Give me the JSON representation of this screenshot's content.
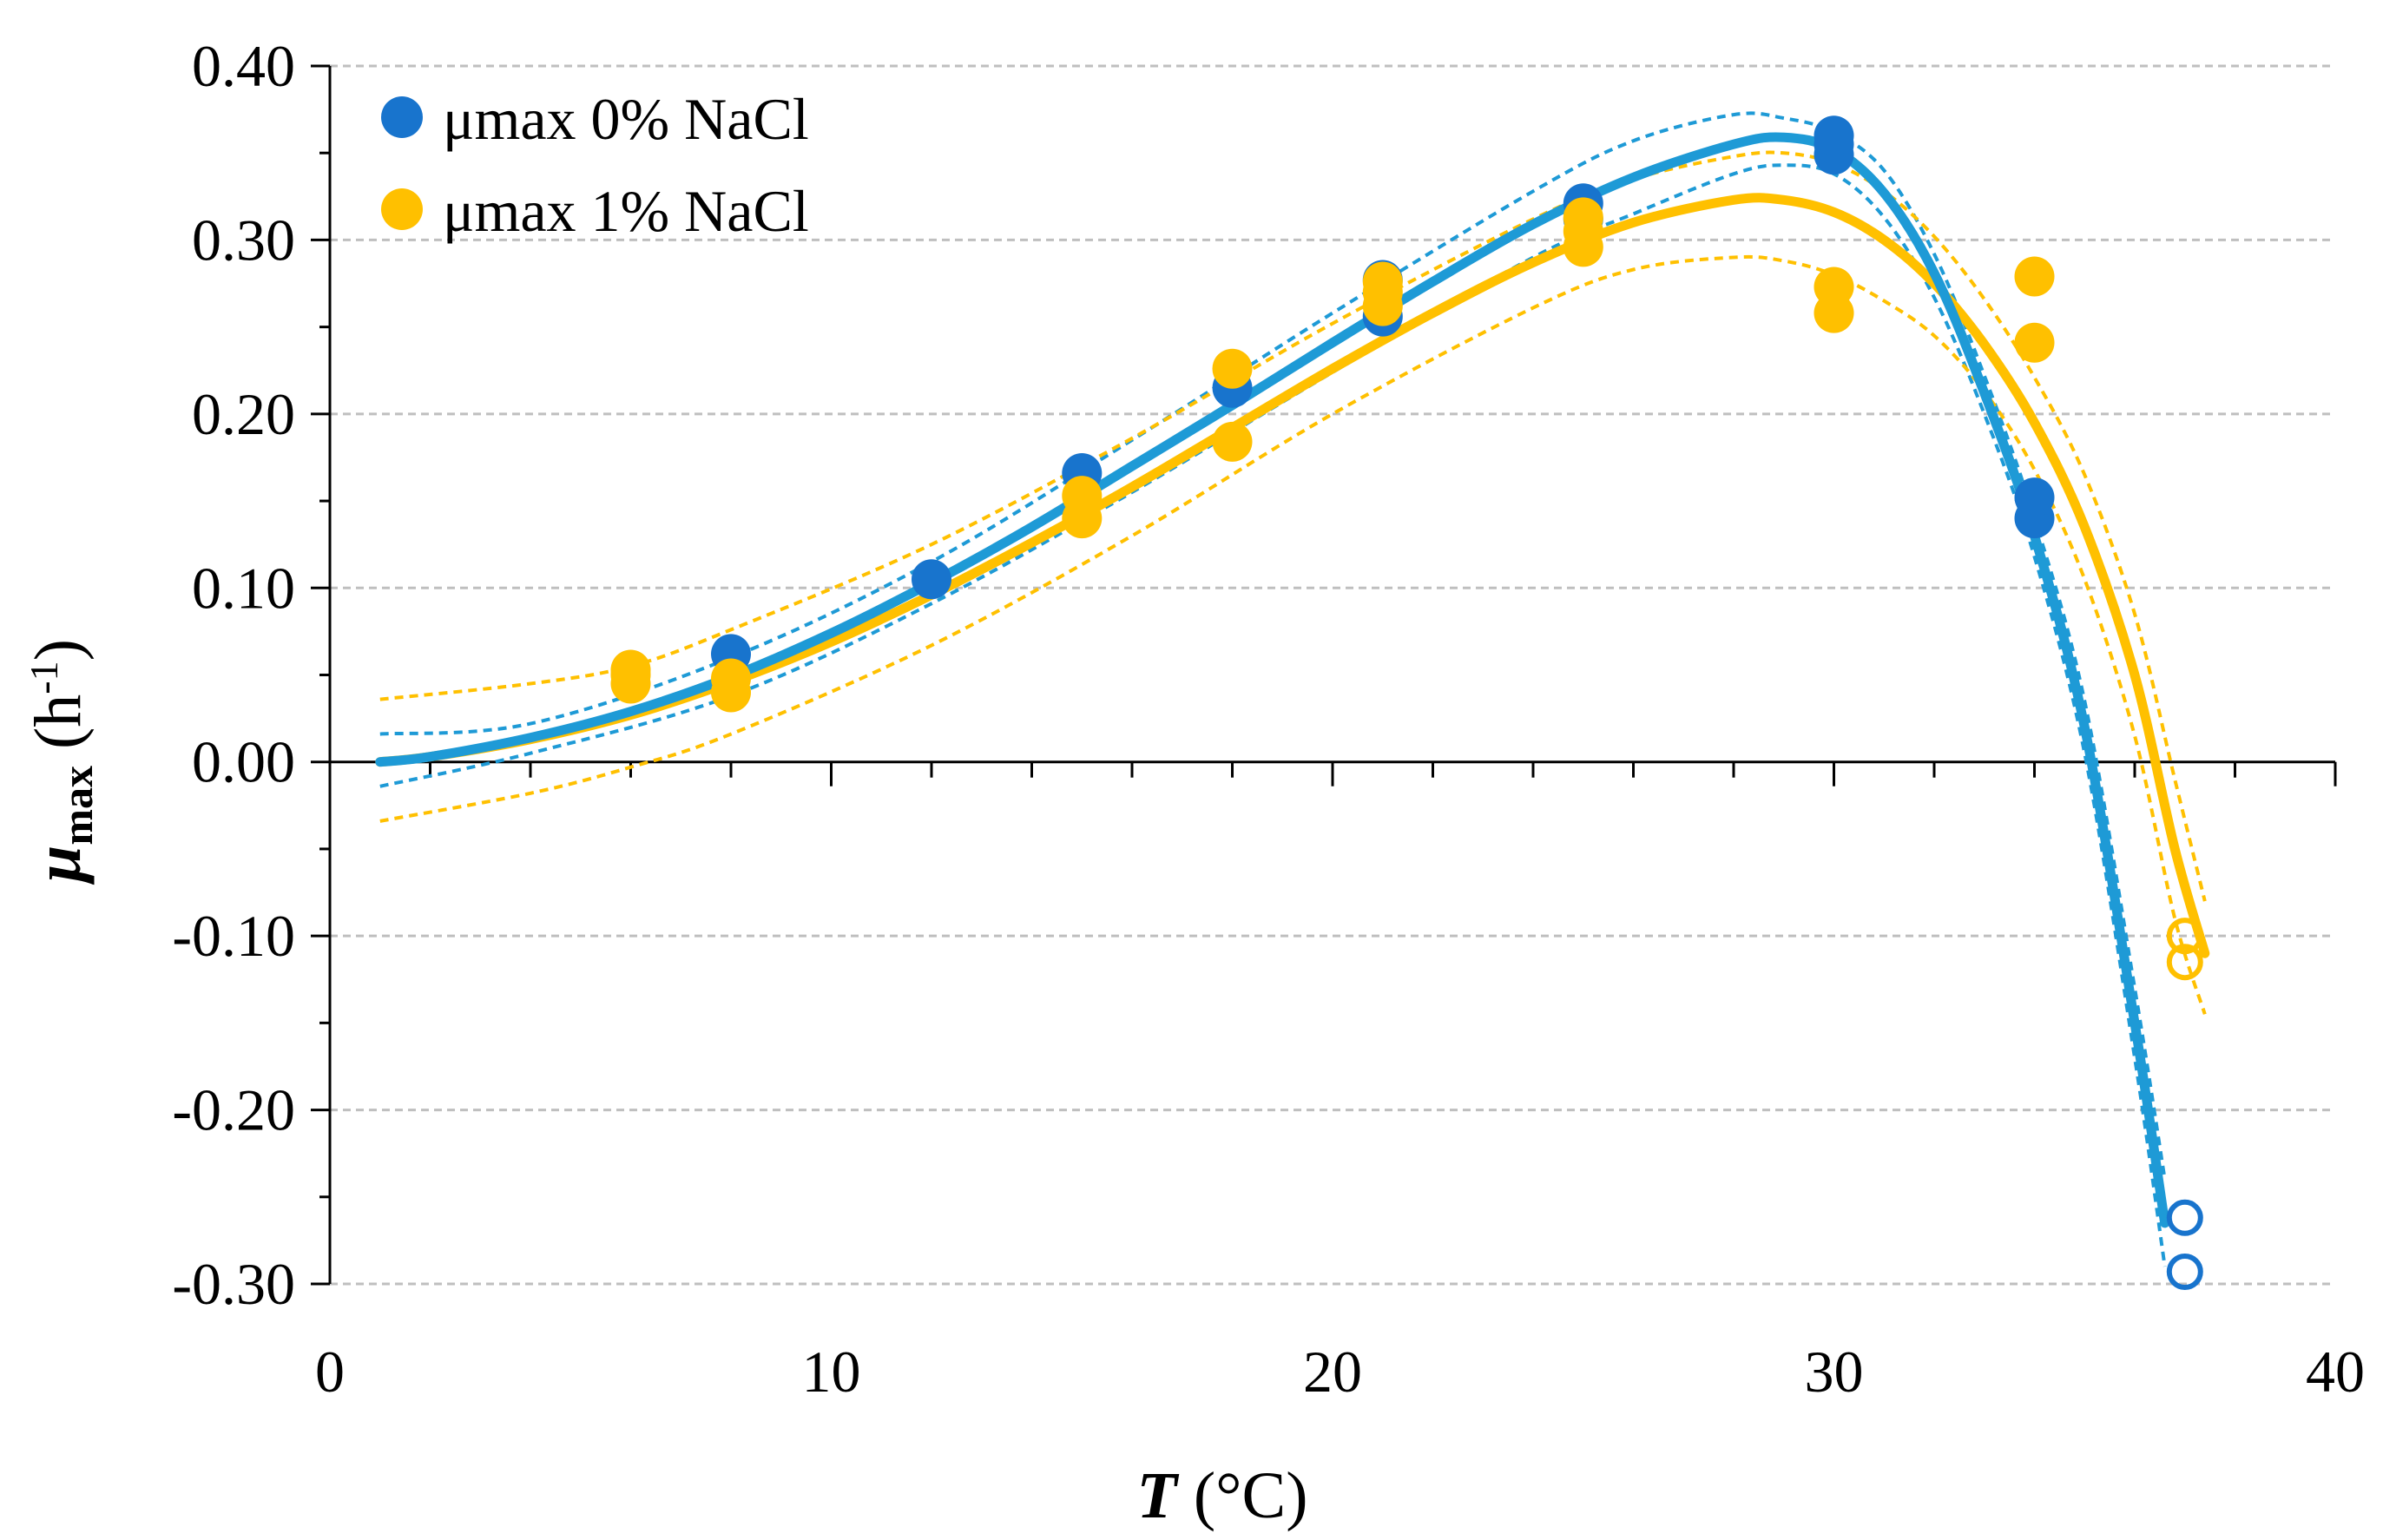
{
  "chart_data": {
    "type": "scatter",
    "title": "",
    "xlabel": {
      "symbol": "T",
      "unit": " (°C)"
    },
    "ylabel": {
      "symbol": "μ",
      "subscript": "max",
      "unit_prefix": " (h",
      "unit_sup": "-1",
      "unit_suffix": ")"
    },
    "xlim": [
      0,
      40
    ],
    "ylim": [
      -0.3,
      0.4
    ],
    "xticks": [
      0,
      10,
      20,
      30,
      40
    ],
    "xtick_labels": [
      "0",
      "10",
      "20",
      "30",
      "40"
    ],
    "xminor_step": 2,
    "yticks": [
      -0.3,
      -0.2,
      -0.1,
      0.0,
      0.1,
      0.2,
      0.3,
      0.4
    ],
    "ytick_labels": [
      "-0.30",
      "-0.20",
      "-0.10",
      "0.00",
      "0.10",
      "0.20",
      "0.30",
      "0.40"
    ],
    "grid": "horizontal dashed",
    "legend_position": "top-left",
    "series": [
      {
        "name": "μmax 0% NaCl",
        "color": "#1874CD",
        "curve_color": "#1E9AD6",
        "points": [
          [
            8,
            0.062
          ],
          [
            12,
            0.105
          ],
          [
            15,
            0.166
          ],
          [
            18,
            0.215
          ],
          [
            21,
            0.256
          ],
          [
            21,
            0.277
          ],
          [
            25,
            0.312
          ],
          [
            25,
            0.321
          ],
          [
            30,
            0.349
          ],
          [
            30,
            0.355
          ],
          [
            30,
            0.36
          ],
          [
            34,
            0.14
          ],
          [
            34,
            0.152
          ]
        ],
        "open_points": [
          [
            37,
            -0.262
          ],
          [
            37,
            -0.293
          ]
        ],
        "fit_curve": [
          [
            1,
            0.0
          ],
          [
            2,
            0.003
          ],
          [
            4,
            0.014
          ],
          [
            6,
            0.029
          ],
          [
            8,
            0.049
          ],
          [
            10,
            0.074
          ],
          [
            12,
            0.103
          ],
          [
            14,
            0.135
          ],
          [
            16,
            0.17
          ],
          [
            18,
            0.205
          ],
          [
            20,
            0.241
          ],
          [
            22,
            0.276
          ],
          [
            24,
            0.309
          ],
          [
            26,
            0.336
          ],
          [
            28,
            0.355
          ],
          [
            29,
            0.359
          ],
          [
            30,
            0.352
          ],
          [
            31,
            0.327
          ],
          [
            32,
            0.281
          ],
          [
            33,
            0.212
          ],
          [
            34,
            0.13
          ],
          [
            35,
            0.02
          ],
          [
            36,
            -0.15
          ],
          [
            36.6,
            -0.265
          ]
        ],
        "ci_upper": [
          [
            1,
            0.016
          ],
          [
            4,
            0.022
          ],
          [
            8,
            0.06
          ],
          [
            12,
            0.115
          ],
          [
            16,
            0.185
          ],
          [
            20,
            0.258
          ],
          [
            24,
            0.328
          ],
          [
            26,
            0.357
          ],
          [
            28,
            0.372
          ],
          [
            29,
            0.37
          ],
          [
            30,
            0.362
          ],
          [
            31,
            0.34
          ],
          [
            32,
            0.292
          ],
          [
            33,
            0.222
          ],
          [
            34,
            0.14
          ],
          [
            35,
            0.035
          ],
          [
            36,
            -0.13
          ],
          [
            36.6,
            -0.24
          ]
        ],
        "ci_lower": [
          [
            1,
            -0.014
          ],
          [
            4,
            0.005
          ],
          [
            8,
            0.038
          ],
          [
            12,
            0.091
          ],
          [
            16,
            0.155
          ],
          [
            20,
            0.224
          ],
          [
            24,
            0.29
          ],
          [
            26,
            0.315
          ],
          [
            28,
            0.338
          ],
          [
            29,
            0.343
          ],
          [
            30,
            0.338
          ],
          [
            31,
            0.313
          ],
          [
            32,
            0.267
          ],
          [
            33,
            0.2
          ],
          [
            34,
            0.118
          ],
          [
            35,
            0.005
          ],
          [
            36,
            -0.17
          ],
          [
            36.6,
            -0.29
          ]
        ]
      },
      {
        "name": "μmax 1% NaCl",
        "color": "#FFC000",
        "curve_color": "#FFC000",
        "points": [
          [
            6,
            0.045
          ],
          [
            6,
            0.05
          ],
          [
            6,
            0.053
          ],
          [
            8,
            0.04
          ],
          [
            8,
            0.048
          ],
          [
            15,
            0.14
          ],
          [
            15,
            0.153
          ],
          [
            18,
            0.184
          ],
          [
            18,
            0.226
          ],
          [
            21,
            0.262
          ],
          [
            21,
            0.27
          ],
          [
            21,
            0.276
          ],
          [
            25,
            0.296
          ],
          [
            25,
            0.305
          ],
          [
            25,
            0.313
          ],
          [
            30,
            0.258
          ],
          [
            30,
            0.273
          ],
          [
            34,
            0.241
          ],
          [
            34,
            0.279
          ]
        ],
        "open_points": [
          [
            37,
            -0.1
          ],
          [
            37,
            -0.115
          ]
        ],
        "fit_curve": [
          [
            1,
            0.0
          ],
          [
            2,
            0.003
          ],
          [
            4,
            0.013
          ],
          [
            6,
            0.027
          ],
          [
            8,
            0.046
          ],
          [
            10,
            0.069
          ],
          [
            12,
            0.096
          ],
          [
            14,
            0.126
          ],
          [
            16,
            0.158
          ],
          [
            18,
            0.192
          ],
          [
            20,
            0.226
          ],
          [
            22,
            0.258
          ],
          [
            24,
            0.287
          ],
          [
            26,
            0.31
          ],
          [
            28,
            0.323
          ],
          [
            29,
            0.323
          ],
          [
            30,
            0.316
          ],
          [
            31,
            0.3
          ],
          [
            32,
            0.275
          ],
          [
            33,
            0.24
          ],
          [
            34,
            0.195
          ],
          [
            35,
            0.135
          ],
          [
            36,
            0.05
          ],
          [
            36.8,
            -0.05
          ],
          [
            37.4,
            -0.11
          ]
        ],
        "ci_upper": [
          [
            1,
            0.036
          ],
          [
            4,
            0.045
          ],
          [
            6,
            0.055
          ],
          [
            8,
            0.076
          ],
          [
            12,
            0.125
          ],
          [
            16,
            0.186
          ],
          [
            20,
            0.252
          ],
          [
            24,
            0.312
          ],
          [
            26,
            0.335
          ],
          [
            28,
            0.348
          ],
          [
            29,
            0.35
          ],
          [
            30,
            0.344
          ],
          [
            31,
            0.328
          ],
          [
            32,
            0.302
          ],
          [
            33,
            0.266
          ],
          [
            34,
            0.221
          ],
          [
            35,
            0.165
          ],
          [
            36,
            0.085
          ],
          [
            36.8,
            -0.01
          ],
          [
            37.4,
            -0.08
          ]
        ],
        "ci_lower": [
          [
            1,
            -0.034
          ],
          [
            4,
            -0.018
          ],
          [
            6,
            -0.003
          ],
          [
            8,
            0.016
          ],
          [
            12,
            0.067
          ],
          [
            16,
            0.13
          ],
          [
            20,
            0.2
          ],
          [
            24,
            0.261
          ],
          [
            26,
            0.283
          ],
          [
            28,
            0.29
          ],
          [
            29,
            0.288
          ],
          [
            30,
            0.28
          ],
          [
            31,
            0.265
          ],
          [
            32,
            0.245
          ],
          [
            33,
            0.213
          ],
          [
            34,
            0.168
          ],
          [
            35,
            0.105
          ],
          [
            36,
            0.015
          ],
          [
            36.8,
            -0.09
          ],
          [
            37.4,
            -0.145
          ]
        ]
      }
    ]
  }
}
